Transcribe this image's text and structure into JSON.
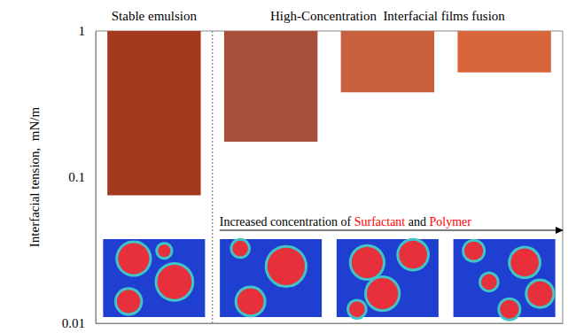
{
  "chart_data": {
    "type": "bar",
    "y_label": "Interfacial tension,  mN/m",
    "categories": [
      null,
      null,
      null,
      null
    ],
    "values": [
      0.075,
      0.175,
      0.38,
      0.52
    ],
    "colors": [
      "#a5391c",
      "#a8503a",
      "#c8603e",
      "#d9653a"
    ],
    "ylim": [
      0.01,
      1
    ],
    "yticks": [
      0.01,
      0.1,
      1
    ],
    "log": "y",
    "grid": false,
    "tick_labels": "y",
    "annotations": [
      {
        "text": "Stable emulsion"
      },
      {
        "text": "High-Concentration  Interfacial films fusion"
      },
      {
        "text": "Increased concentration of Surfactant and Polymer",
        "highlight": [
          "Surfactant",
          "Polymer"
        ],
        "highlight_color": "#ff0000"
      }
    ]
  }
}
